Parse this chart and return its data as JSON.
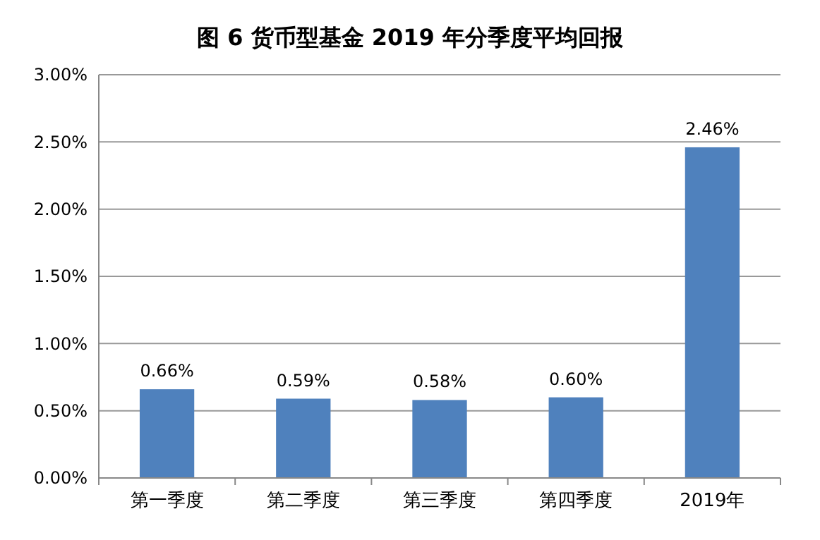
{
  "chart_data": {
    "type": "bar",
    "title": "图 6 货币型基金 2019 年分季度平均回报",
    "categories": [
      "第一季度",
      "第二季度",
      "第三季度",
      "第四季度",
      "2019年"
    ],
    "values": [
      0.66,
      0.59,
      0.58,
      0.6,
      2.46
    ],
    "value_labels": [
      "0.66%",
      "0.59%",
      "0.58%",
      "0.60%",
      "2.46%"
    ],
    "color": "#4f81bd",
    "ylim": [
      0,
      3
    ],
    "yticks": [
      {
        "value": 0,
        "label": "0.00%"
      },
      {
        "value": 0.5,
        "label": "0.50%"
      },
      {
        "value": 1,
        "label": "1.00%"
      },
      {
        "value": 1.5,
        "label": "1.50%"
      },
      {
        "value": 2,
        "label": "2.00%"
      },
      {
        "value": 2.5,
        "label": "2.50%"
      },
      {
        "value": 3,
        "label": "3.00%"
      }
    ],
    "grid": "y"
  }
}
